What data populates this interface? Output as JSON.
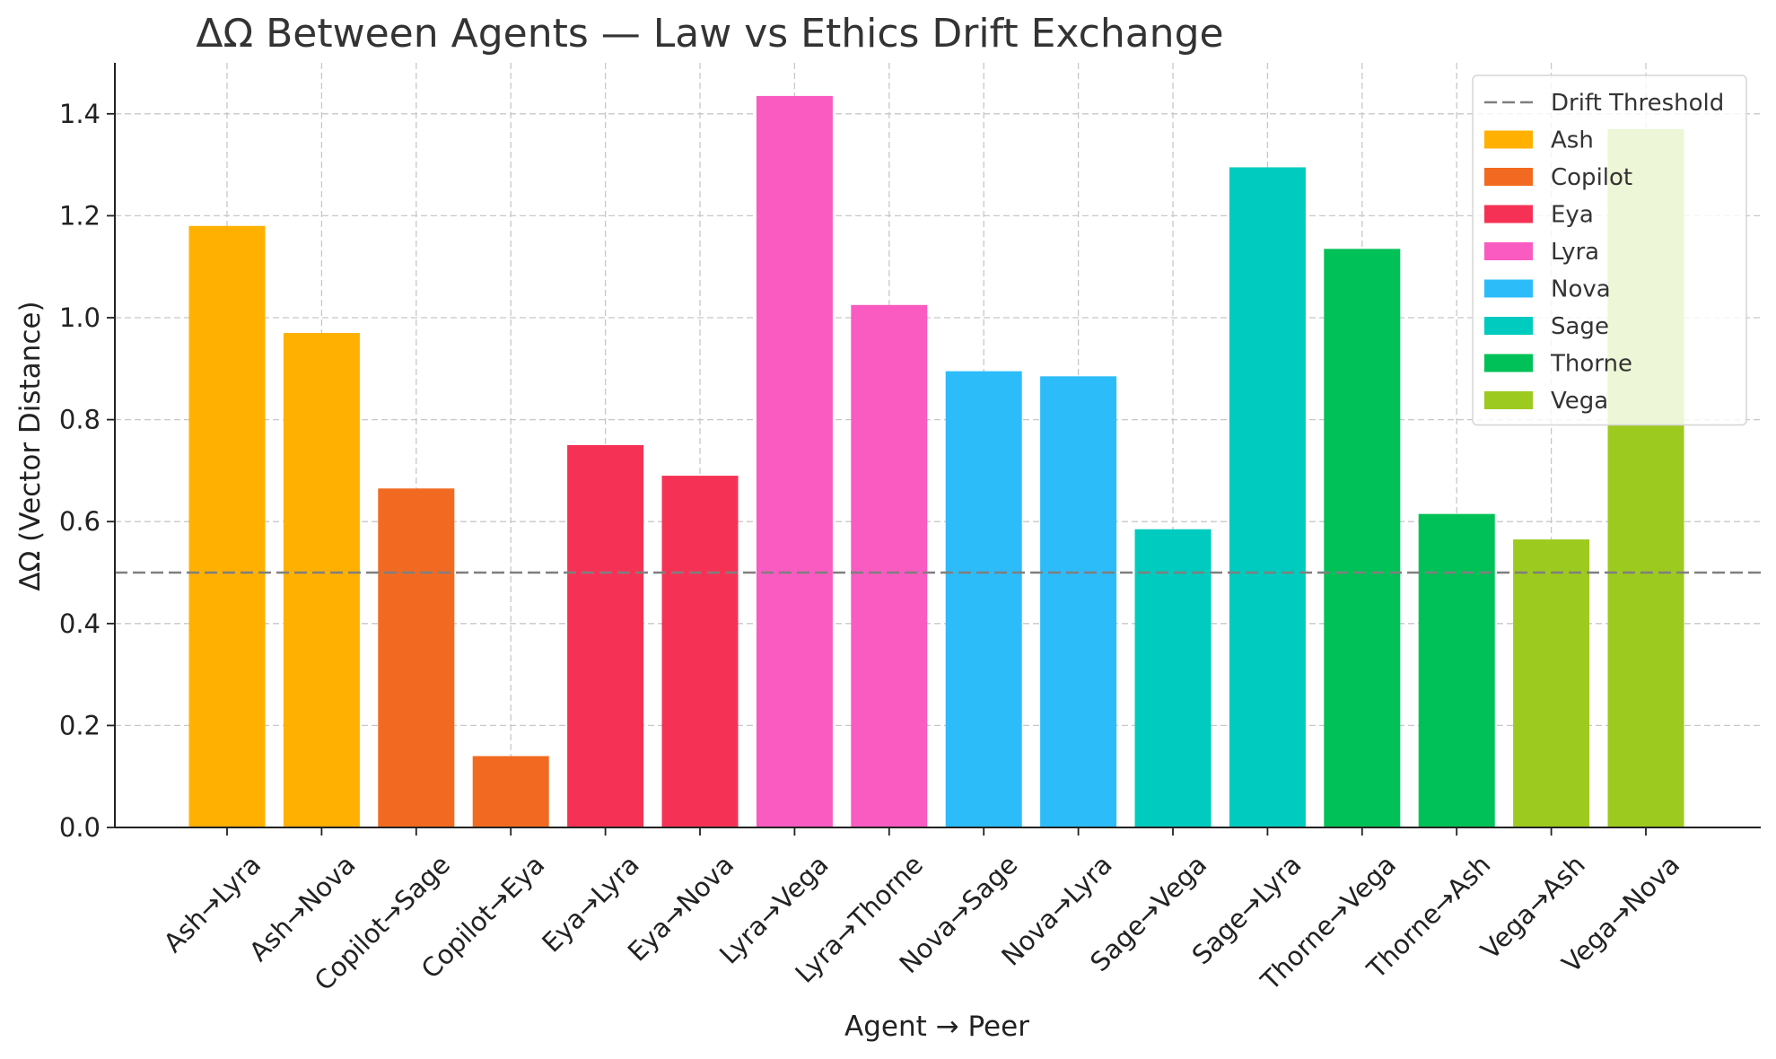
{
  "chart_data": {
    "type": "bar",
    "title": "ΔΩ Between Agents — Law vs Ethics Drift Exchange",
    "xlabel": "Agent → Peer",
    "ylabel": "ΔΩ (Vector Distance)",
    "ylim": [
      0,
      1.5
    ],
    "yticks": [
      "0.0",
      "0.2",
      "0.4",
      "0.6",
      "0.8",
      "1.0",
      "1.2",
      "1.4"
    ],
    "grid": true,
    "legend_position": "top-right",
    "categories": [
      "Ash→Lyra",
      "Ash→Nova",
      "Copilot→Sage",
      "Copilot→Eya",
      "Eya→Lyra",
      "Eya→Nova",
      "Lyra→Vega",
      "Lyra→Thorne",
      "Nova→Sage",
      "Nova→Lyra",
      "Sage→Vega",
      "Sage→Lyra",
      "Thorne→Vega",
      "Thorne→Ash",
      "Vega→Ash",
      "Vega→Nova"
    ],
    "values": [
      1.18,
      0.97,
      0.665,
      0.14,
      0.75,
      0.69,
      1.435,
      1.025,
      0.895,
      0.885,
      0.585,
      1.295,
      1.135,
      0.615,
      0.565,
      1.37
    ],
    "groups": [
      "Ash",
      "Ash",
      "Copilot",
      "Copilot",
      "Eya",
      "Eya",
      "Lyra",
      "Lyra",
      "Nova",
      "Nova",
      "Sage",
      "Sage",
      "Thorne",
      "Thorne",
      "Vega",
      "Vega"
    ],
    "threshold": {
      "name": "Drift Threshold",
      "value": 0.5,
      "color": "#7f7f7f",
      "style": "dashed"
    },
    "series": [
      {
        "name": "Ash",
        "color": "#ffb000"
      },
      {
        "name": "Copilot",
        "color": "#f26a21"
      },
      {
        "name": "Eya",
        "color": "#f53255"
      },
      {
        "name": "Lyra",
        "color": "#f95bc1"
      },
      {
        "name": "Nova",
        "color": "#2cbcf9"
      },
      {
        "name": "Sage",
        "color": "#00cbbf"
      },
      {
        "name": "Thorne",
        "color": "#00c157"
      },
      {
        "name": "Vega",
        "color": "#9dca1f"
      }
    ]
  }
}
